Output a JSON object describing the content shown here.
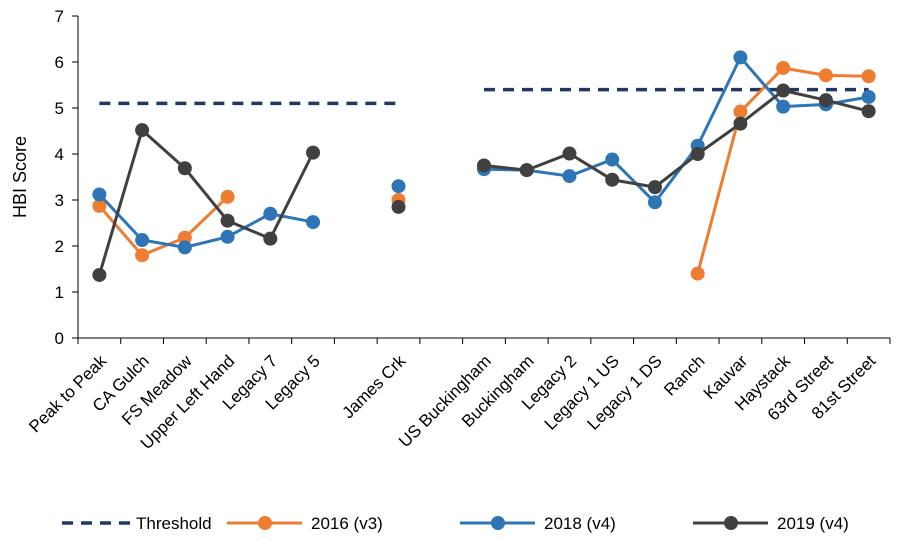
{
  "chart_data": {
    "type": "line",
    "categories": [
      "Peak to Peak",
      "CA Gulch",
      "FS Meadow",
      "Upper Left Hand",
      "Legacy 7",
      "Legacy 5",
      "",
      "James Crk",
      "",
      "US Buckingham",
      "Buckingham",
      "Legacy 2",
      "Legacy 1 US",
      "Legacy 1 DS",
      "Ranch",
      "Kauvar",
      "Haystack",
      "63rd Street",
      "81st Street"
    ],
    "ylabel": "HBI Score",
    "xlabel": "",
    "ylim": [
      0,
      7
    ],
    "yticks": [
      0,
      1,
      2,
      3,
      4,
      5,
      6,
      7
    ],
    "grid": false,
    "legend_position": "bottom",
    "thresholds": {
      "name": "Threshold",
      "color": "#1f3864",
      "segments": [
        {
          "from": 0,
          "to": 7,
          "value": 5.1
        },
        {
          "from": 9,
          "to": 18,
          "value": 5.4
        }
      ]
    },
    "series": [
      {
        "name": "2016 (v3)",
        "color": "#ed7d31",
        "values": [
          2.87,
          1.8,
          2.18,
          3.07,
          null,
          null,
          null,
          3.0,
          null,
          null,
          null,
          null,
          null,
          null,
          1.4,
          4.92,
          5.87,
          5.71,
          5.69
        ]
      },
      {
        "name": "2018 (v4)",
        "color": "#2e75b6",
        "values": [
          3.12,
          2.13,
          1.97,
          2.2,
          2.7,
          2.52,
          null,
          3.3,
          null,
          3.67,
          3.65,
          3.52,
          3.88,
          2.95,
          4.18,
          6.1,
          5.03,
          5.08,
          5.24
        ]
      },
      {
        "name": "2019 (v4)",
        "color": "#404040",
        "values": [
          1.37,
          4.52,
          3.69,
          2.55,
          2.16,
          4.03,
          null,
          2.85,
          null,
          3.75,
          3.65,
          4.01,
          3.44,
          3.28,
          4.0,
          4.66,
          5.38,
          5.17,
          4.93
        ]
      }
    ]
  }
}
